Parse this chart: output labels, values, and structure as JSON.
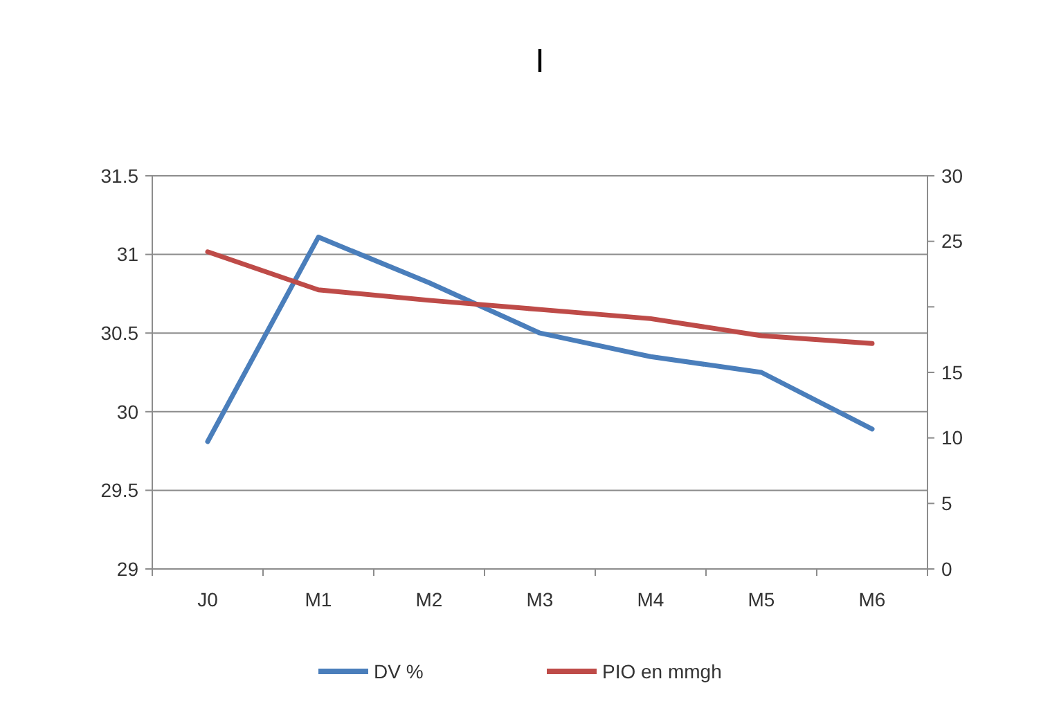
{
  "chart_data": {
    "type": "line",
    "title": "I",
    "categories": [
      "J0",
      "M1",
      "M2",
      "M3",
      "M4",
      "M5",
      "M6"
    ],
    "series": [
      {
        "name": "DV %",
        "color": "#4a7ebb",
        "values": [
          29.81,
          31.11,
          30.82,
          30.5,
          30.35,
          30.25,
          29.89
        ]
      },
      {
        "name": "PIO en mmgh",
        "color": "#be4b48",
        "axis": "y2",
        "values": [
          24.2,
          21.3,
          20.5,
          19.8,
          19.1,
          17.8,
          17.2
        ]
      }
    ],
    "ylim": [
      29,
      31.5
    ],
    "yticks": [
      29,
      29.5,
      30,
      30.5,
      31,
      31.5
    ],
    "y2lim": [
      0,
      30
    ],
    "y2ticks": [
      0,
      5,
      10,
      15,
      {
        "value": 20,
        "label": null
      },
      25,
      30
    ],
    "grid": "y",
    "legend": "bottom",
    "marker": "none",
    "line_style": "solid"
  }
}
